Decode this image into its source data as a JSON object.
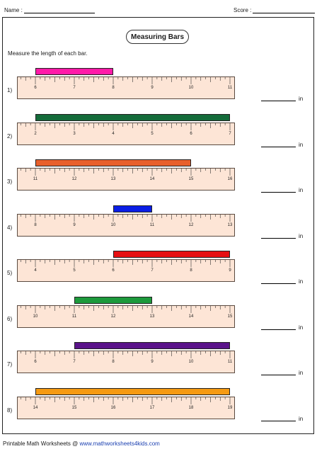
{
  "header": {
    "name_label": "Name :",
    "score_label": "Score :"
  },
  "title": "Measuring Bars",
  "instruction": "Measure the length of each bar.",
  "problems": [
    {
      "number": "1)",
      "ticks": [
        "6",
        "7",
        "8",
        "9",
        "10",
        "11"
      ],
      "bar_start": 6,
      "bar_end": 8,
      "color": "#ff1aa8"
    },
    {
      "number": "2)",
      "ticks": [
        "2",
        "3",
        "4",
        "5",
        "6",
        "7"
      ],
      "bar_start": 2,
      "bar_end": 7,
      "color": "#146b3a"
    },
    {
      "number": "3)",
      "ticks": [
        "11",
        "12",
        "13",
        "14",
        "15",
        "16"
      ],
      "bar_start": 11,
      "bar_end": 15,
      "color": "#e8602c"
    },
    {
      "number": "4)",
      "ticks": [
        "8",
        "9",
        "10",
        "11",
        "12",
        "13"
      ],
      "bar_start": 10,
      "bar_end": 11,
      "color": "#0a1ee6"
    },
    {
      "number": "5)",
      "ticks": [
        "4",
        "5",
        "6",
        "7",
        "8",
        "9"
      ],
      "bar_start": 6,
      "bar_end": 9,
      "color": "#e60f12"
    },
    {
      "number": "6)",
      "ticks": [
        "10",
        "11",
        "12",
        "13",
        "14",
        "15"
      ],
      "bar_start": 11,
      "bar_end": 13,
      "color": "#1d9a3c"
    },
    {
      "number": "7)",
      "ticks": [
        "6",
        "7",
        "8",
        "9",
        "10",
        "11"
      ],
      "bar_start": 7,
      "bar_end": 11,
      "color": "#5a138a"
    },
    {
      "number": "8)",
      "ticks": [
        "14",
        "15",
        "16",
        "17",
        "18",
        "19"
      ],
      "bar_start": 14,
      "bar_end": 19,
      "color": "#f59a12"
    }
  ],
  "answer_unit": "in",
  "footer": {
    "prefix": "Printable Math Worksheets @ ",
    "site": "www.mathworksheets4kids.com"
  },
  "colors": {
    "ruler_fill": "#fde5d6",
    "ruler_stroke": "#5a4a40"
  }
}
